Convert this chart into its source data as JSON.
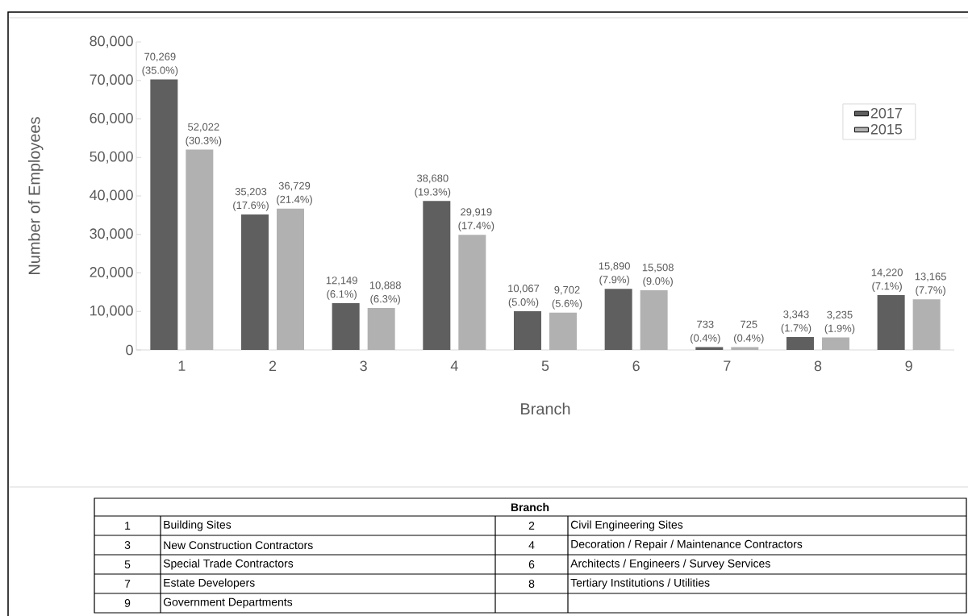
{
  "chart_data": {
    "type": "bar",
    "xlabel": "Branch",
    "ylabel": "Number of Employees",
    "categories": [
      "1",
      "2",
      "3",
      "4",
      "5",
      "6",
      "7",
      "8",
      "9"
    ],
    "series": [
      {
        "name": "2017",
        "color": "#5f5f5f",
        "values": [
          70269,
          35203,
          12149,
          38680,
          10067,
          15890,
          733,
          3343,
          14220
        ],
        "value_labels": [
          "70,269 (35.0%)",
          "35,203 (17.6%)",
          "12,149 (6.1%)",
          "38,680 (19.3%)",
          "10,067 (5.0%)",
          "15,890 (7.9%)",
          "733 (0.4%)",
          "3,343 (1.7%)",
          "14,220 (7.1%)"
        ]
      },
      {
        "name": "2015",
        "color": "#b1b1b1",
        "values": [
          52022,
          36729,
          10888,
          29919,
          9702,
          15508,
          725,
          3235,
          13165
        ],
        "value_labels": [
          "52,022 (30.3%)",
          "36,729 (21.4%)",
          "10,888 (6.3%)",
          "29,919 (17.4%)",
          "9,702 (5.6%)",
          "15,508 (9.0%)",
          "725 (0.4%)",
          "3,235 (1.9%)",
          "13,165 (7.7%)"
        ]
      }
    ],
    "ylim": [
      0,
      80000
    ],
    "yticks": [
      {
        "value": 0,
        "label": "0"
      },
      {
        "value": 10000,
        "label": "10,000"
      },
      {
        "value": 20000,
        "label": "20,000"
      },
      {
        "value": 30000,
        "label": "30,000"
      },
      {
        "value": 40000,
        "label": "40,000"
      },
      {
        "value": 50000,
        "label": "50,000"
      },
      {
        "value": 60000,
        "label": "60,000"
      },
      {
        "value": 70000,
        "label": "70,000"
      },
      {
        "value": 80000,
        "label": "80,000"
      }
    ],
    "grid": false,
    "legend": "top right",
    "annotations": [
      "Branch",
      "1",
      "Building Sites",
      "2",
      "Civil Engineering Sites",
      "3",
      "New Construction Contractors",
      "4",
      "Decoration / Repair / Maintenance Contractors",
      "5",
      "Special Trade Contractors",
      "6",
      "Architects / Engineers / Survey Services",
      "7",
      "Estate Developers",
      "8",
      "Tertiary Institutions / Utilities",
      "9",
      "Government Departments"
    ]
  }
}
